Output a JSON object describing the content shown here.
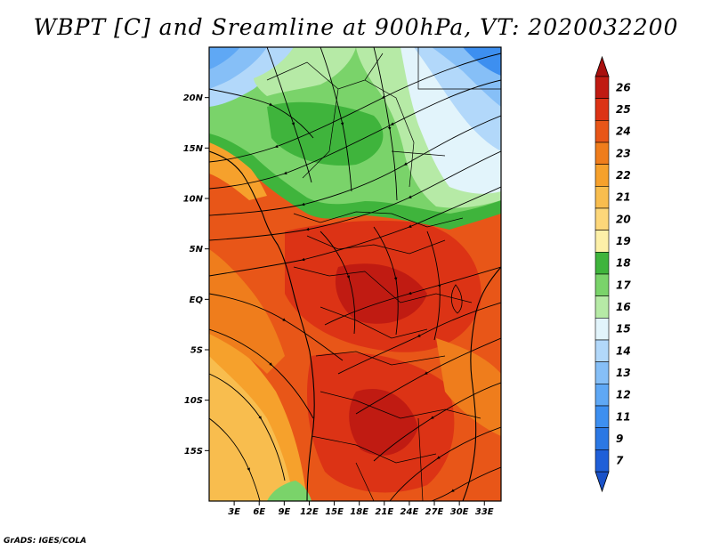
{
  "title": "WBPT [C] and Sreamline at 900hPa, VT: 2020032200",
  "credit": "GrADS: IGES/COLA",
  "map": {
    "variable": "WBPT [C]",
    "overlay": "Streamline",
    "level": "900hPa",
    "valid_time": "2020032200",
    "lon_range": [
      0,
      35
    ],
    "lat_range": [
      -20,
      25
    ],
    "lat_ticks": [
      {
        "value": 20,
        "label": "20N"
      },
      {
        "value": 15,
        "label": "15N"
      },
      {
        "value": 10,
        "label": "10N"
      },
      {
        "value": 5,
        "label": "5N"
      },
      {
        "value": 0,
        "label": "EQ"
      },
      {
        "value": -5,
        "label": "5S"
      },
      {
        "value": -10,
        "label": "10S"
      },
      {
        "value": -15,
        "label": "15S"
      }
    ],
    "lon_ticks": [
      {
        "value": 3,
        "label": "3E"
      },
      {
        "value": 6,
        "label": "6E"
      },
      {
        "value": 9,
        "label": "9E"
      },
      {
        "value": 12,
        "label": "12E"
      },
      {
        "value": 15,
        "label": "15E"
      },
      {
        "value": 18,
        "label": "18E"
      },
      {
        "value": 21,
        "label": "21E"
      },
      {
        "value": 24,
        "label": "24E"
      },
      {
        "value": 27,
        "label": "27E"
      },
      {
        "value": 30,
        "label": "30E"
      },
      {
        "value": 33,
        "label": "33E"
      }
    ]
  },
  "colorbar": {
    "levels": [
      {
        "label": "7",
        "color": "#1f5fd8"
      },
      {
        "label": "9",
        "color": "#2b78e4"
      },
      {
        "label": "11",
        "color": "#3d8ff0"
      },
      {
        "label": "12",
        "color": "#5fa8f5"
      },
      {
        "label": "13",
        "color": "#86bff7"
      },
      {
        "label": "14",
        "color": "#b2d8fa"
      },
      {
        "label": "15",
        "color": "#e2f4fb"
      },
      {
        "label": "16",
        "color": "#b6eaa6"
      },
      {
        "label": "17",
        "color": "#7ad36a"
      },
      {
        "label": "18",
        "color": "#3fb43c"
      },
      {
        "label": "19",
        "color": "#fdf0a8"
      },
      {
        "label": "20",
        "color": "#fdd77a"
      },
      {
        "label": "21",
        "color": "#f8bd4e"
      },
      {
        "label": "22",
        "color": "#f6a12c"
      },
      {
        "label": "23",
        "color": "#ef7d1c"
      },
      {
        "label": "24",
        "color": "#e85618"
      },
      {
        "label": "25",
        "color": "#dc3315"
      },
      {
        "label": "26",
        "color": "#c01b12"
      }
    ],
    "under_color": "#1a52c8",
    "over_color": "#a8100e"
  }
}
